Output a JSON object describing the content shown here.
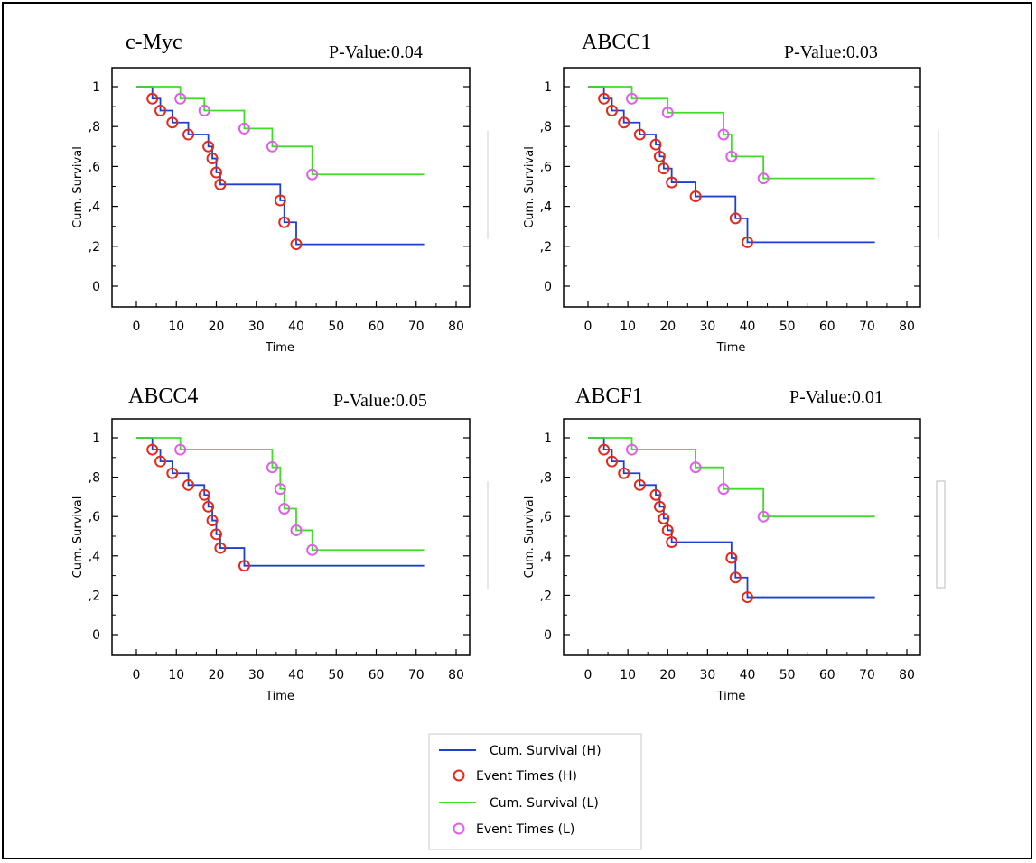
{
  "colors": {
    "H": "#1f3fcf",
    "H_event": "#e32a1b",
    "L": "#3fdc2a",
    "L_event": "#e05ee8"
  },
  "legend": {
    "items": [
      {
        "label": "Cum. Survival (H)",
        "kind": "line",
        "color": "#1f3fcf"
      },
      {
        "label": "Event Times (H)",
        "kind": "circle",
        "color": "#e32a1b"
      },
      {
        "label": "Cum. Survival (L)",
        "kind": "line",
        "color": "#3fdc2a"
      },
      {
        "label": "Event Times (L)",
        "kind": "circle",
        "color": "#e05ee8"
      }
    ]
  },
  "chart_data": [
    {
      "type": "line",
      "subtype": "kaplan-meier",
      "title": "c-Myc",
      "pvalue_label": "P-Value:0.04",
      "xlabel": "Time",
      "ylabel": "Cum. Survival",
      "xlim": [
        0,
        80
      ],
      "ylim": [
        0,
        1
      ],
      "xticks": [
        "0",
        "10",
        "20",
        "30",
        "40",
        "50",
        "60",
        "70",
        "80"
      ],
      "yticks": [
        "0",
        ",2",
        ",4",
        ",6",
        ",8",
        "1"
      ],
      "series": [
        {
          "name": "Cum. Survival (H)",
          "group": "H",
          "end_time": 72,
          "events": [
            [
              4,
              0.94
            ],
            [
              6,
              0.88
            ],
            [
              9,
              0.82
            ],
            [
              13,
              0.76
            ],
            [
              18,
              0.7
            ],
            [
              19,
              0.64
            ],
            [
              20,
              0.57
            ],
            [
              21,
              0.51
            ],
            [
              36,
              0.43
            ],
            [
              37,
              0.32
            ],
            [
              40,
              0.21
            ]
          ]
        },
        {
          "name": "Cum. Survival (L)",
          "group": "L",
          "end_time": 72,
          "events": [
            [
              11,
              0.94
            ],
            [
              17,
              0.88
            ],
            [
              27,
              0.79
            ],
            [
              34,
              0.7
            ],
            [
              44,
              0.56
            ]
          ]
        }
      ]
    },
    {
      "type": "line",
      "subtype": "kaplan-meier",
      "title": "ABCC1",
      "pvalue_label": "P-Value:0.03",
      "xlabel": "Time",
      "ylabel": "Cum. Survival",
      "xlim": [
        0,
        80
      ],
      "ylim": [
        0,
        1
      ],
      "xticks": [
        "0",
        "10",
        "20",
        "30",
        "40",
        "50",
        "60",
        "70",
        "80"
      ],
      "yticks": [
        "0",
        ",2",
        ",4",
        ",6",
        ",8",
        "1"
      ],
      "series": [
        {
          "name": "Cum. Survival (H)",
          "group": "H",
          "end_time": 72,
          "events": [
            [
              4,
              0.94
            ],
            [
              6,
              0.88
            ],
            [
              9,
              0.82
            ],
            [
              13,
              0.76
            ],
            [
              17,
              0.71
            ],
            [
              18,
              0.65
            ],
            [
              19,
              0.59
            ],
            [
              21,
              0.52
            ],
            [
              27,
              0.45
            ],
            [
              37,
              0.34
            ],
            [
              40,
              0.22
            ]
          ]
        },
        {
          "name": "Cum. Survival (L)",
          "group": "L",
          "end_time": 72,
          "events": [
            [
              11,
              0.94
            ],
            [
              20,
              0.87
            ],
            [
              34,
              0.76
            ],
            [
              36,
              0.65
            ],
            [
              44,
              0.54
            ]
          ]
        }
      ]
    },
    {
      "type": "line",
      "subtype": "kaplan-meier",
      "title": "ABCC4",
      "pvalue_label": "P-Value:0.05",
      "xlabel": "Time",
      "ylabel": "Cum. Survival",
      "xlim": [
        0,
        80
      ],
      "ylim": [
        0,
        1
      ],
      "xticks": [
        "0",
        "10",
        "20",
        "30",
        "40",
        "50",
        "60",
        "70",
        "80"
      ],
      "yticks": [
        "0",
        ",2",
        ",4",
        ",6",
        ",8",
        "1"
      ],
      "series": [
        {
          "name": "Cum. Survival (H)",
          "group": "H",
          "end_time": 72,
          "events": [
            [
              4,
              0.94
            ],
            [
              6,
              0.88
            ],
            [
              9,
              0.82
            ],
            [
              13,
              0.76
            ],
            [
              17,
              0.71
            ],
            [
              18,
              0.65
            ],
            [
              19,
              0.58
            ],
            [
              20,
              0.51
            ],
            [
              21,
              0.44
            ],
            [
              27,
              0.35
            ]
          ]
        },
        {
          "name": "Cum. Survival (L)",
          "group": "L",
          "end_time": 72,
          "events": [
            [
              11,
              0.94
            ],
            [
              34,
              0.85
            ],
            [
              36,
              0.74
            ],
            [
              37,
              0.64
            ],
            [
              40,
              0.53
            ],
            [
              44,
              0.43
            ]
          ]
        }
      ]
    },
    {
      "type": "line",
      "subtype": "kaplan-meier",
      "title": "ABCF1",
      "pvalue_label": "P-Value:0.01",
      "xlabel": "Time",
      "ylabel": "Cum. Survival",
      "xlim": [
        0,
        80
      ],
      "ylim": [
        0,
        1
      ],
      "xticks": [
        "0",
        "10",
        "20",
        "30",
        "40",
        "50",
        "60",
        "70",
        "80"
      ],
      "yticks": [
        "0",
        ",2",
        ",4",
        ",6",
        ",8",
        "1"
      ],
      "series": [
        {
          "name": "Cum. Survival (H)",
          "group": "H",
          "end_time": 72,
          "events": [
            [
              4,
              0.94
            ],
            [
              6,
              0.88
            ],
            [
              9,
              0.82
            ],
            [
              13,
              0.76
            ],
            [
              17,
              0.71
            ],
            [
              18,
              0.65
            ],
            [
              19,
              0.59
            ],
            [
              20,
              0.53
            ],
            [
              21,
              0.47
            ],
            [
              36,
              0.39
            ],
            [
              37,
              0.29
            ],
            [
              40,
              0.19
            ]
          ]
        },
        {
          "name": "Cum. Survival (L)",
          "group": "L",
          "end_time": 72,
          "events": [
            [
              11,
              0.94
            ],
            [
              27,
              0.85
            ],
            [
              34,
              0.74
            ],
            [
              44,
              0.6
            ]
          ]
        }
      ]
    }
  ]
}
